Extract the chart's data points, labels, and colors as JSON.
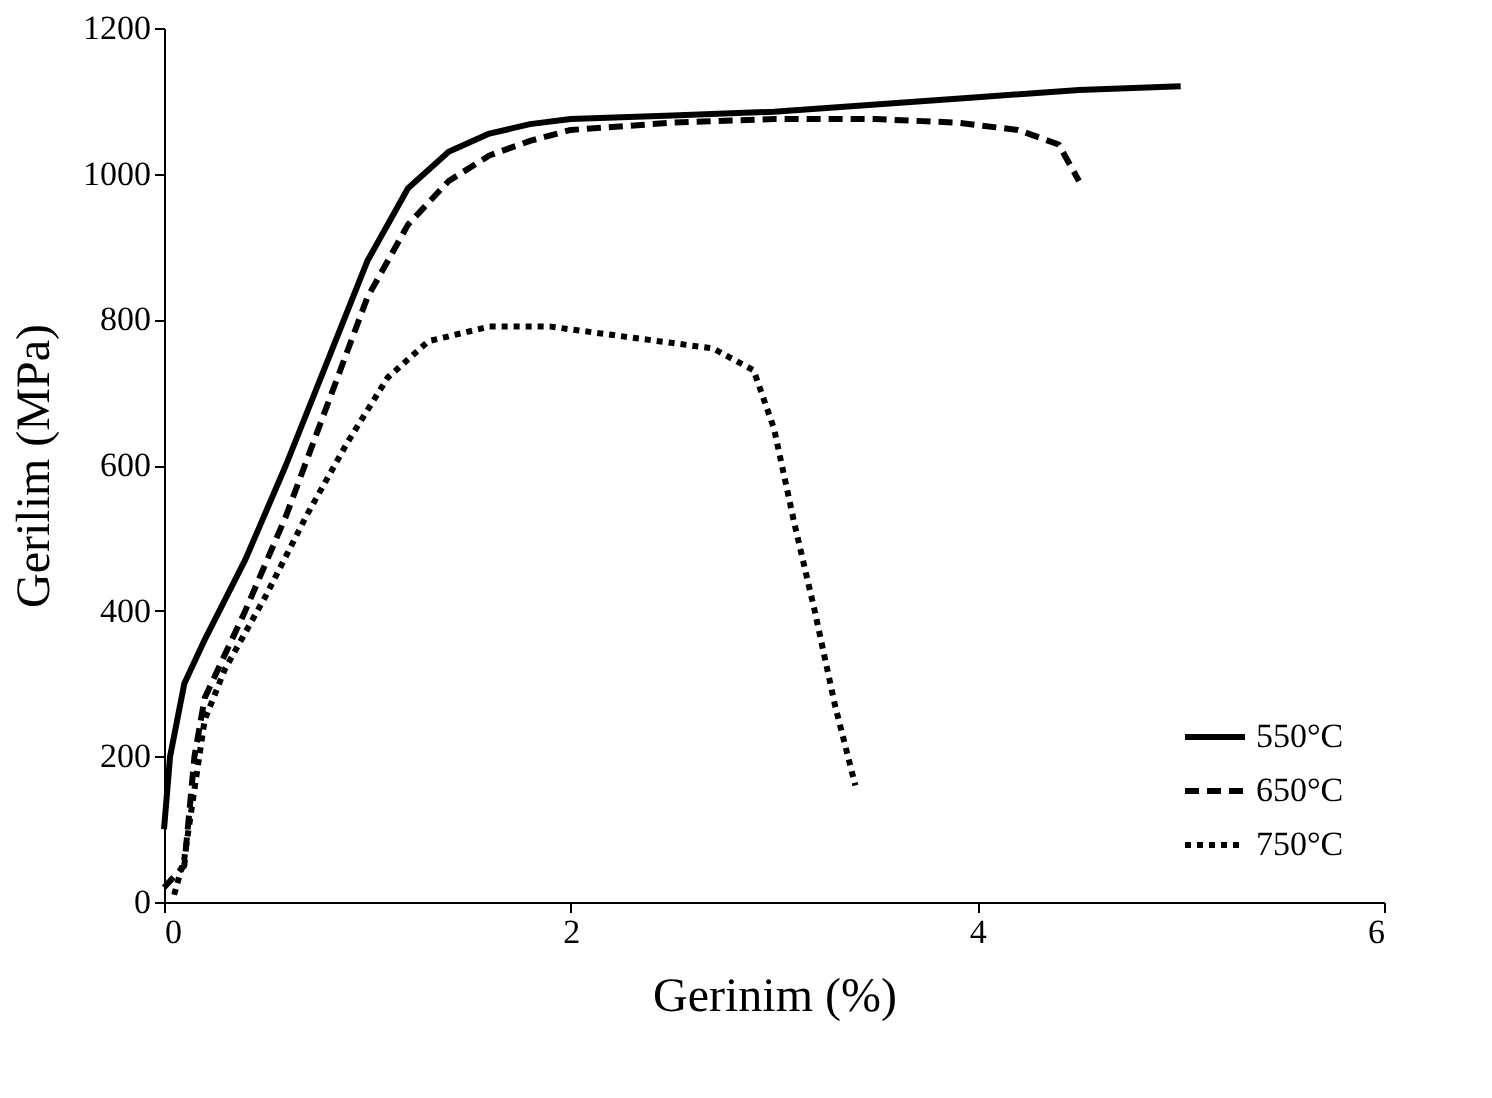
{
  "chart_data": {
    "type": "line",
    "xlabel": "Gerinim (%)",
    "ylabel": "Gerilim (MPa)",
    "xlim": [
      0,
      6
    ],
    "xticks": [
      0,
      2,
      4,
      6
    ],
    "ylim": [
      0,
      1200
    ],
    "yticks": [
      0,
      200,
      400,
      600,
      800,
      1000,
      1200
    ],
    "grid": false,
    "legend": "bottom right",
    "marker": "none",
    "series": [
      {
        "name": "550°C",
        "color": "#000000",
        "line_style": "solid",
        "x": [
          0,
          0.03,
          0.1,
          0.2,
          0.4,
          0.6,
          0.8,
          1.0,
          1.2,
          1.4,
          1.6,
          1.8,
          2.0,
          2.5,
          3.0,
          3.5,
          4.0,
          4.5,
          5.0
        ],
        "values": [
          100,
          200,
          300,
          360,
          470,
          600,
          740,
          880,
          980,
          1030,
          1055,
          1068,
          1075,
          1080,
          1085,
          1095,
          1105,
          1115,
          1120
        ]
      },
      {
        "name": "650°C",
        "color": "#000000",
        "line_style": "dashed",
        "x": [
          0,
          0.1,
          0.15,
          0.2,
          0.4,
          0.6,
          0.8,
          1.0,
          1.2,
          1.4,
          1.6,
          1.8,
          2.0,
          2.5,
          3.0,
          3.5,
          3.9,
          4.2,
          4.4,
          4.5
        ],
        "values": [
          20,
          50,
          200,
          280,
          400,
          530,
          680,
          830,
          930,
          990,
          1025,
          1045,
          1060,
          1070,
          1075,
          1075,
          1070,
          1060,
          1040,
          990
        ]
      },
      {
        "name": "750°C",
        "color": "#000000",
        "line_style": "dotted",
        "x": [
          0.05,
          0.1,
          0.2,
          0.3,
          0.5,
          0.7,
          0.9,
          1.1,
          1.3,
          1.6,
          1.9,
          2.3,
          2.7,
          2.9,
          3.0,
          3.1,
          3.2,
          3.3,
          3.4
        ],
        "values": [
          10,
          60,
          250,
          320,
          420,
          530,
          630,
          720,
          770,
          790,
          790,
          775,
          760,
          730,
          650,
          520,
          400,
          270,
          160
        ]
      }
    ]
  }
}
